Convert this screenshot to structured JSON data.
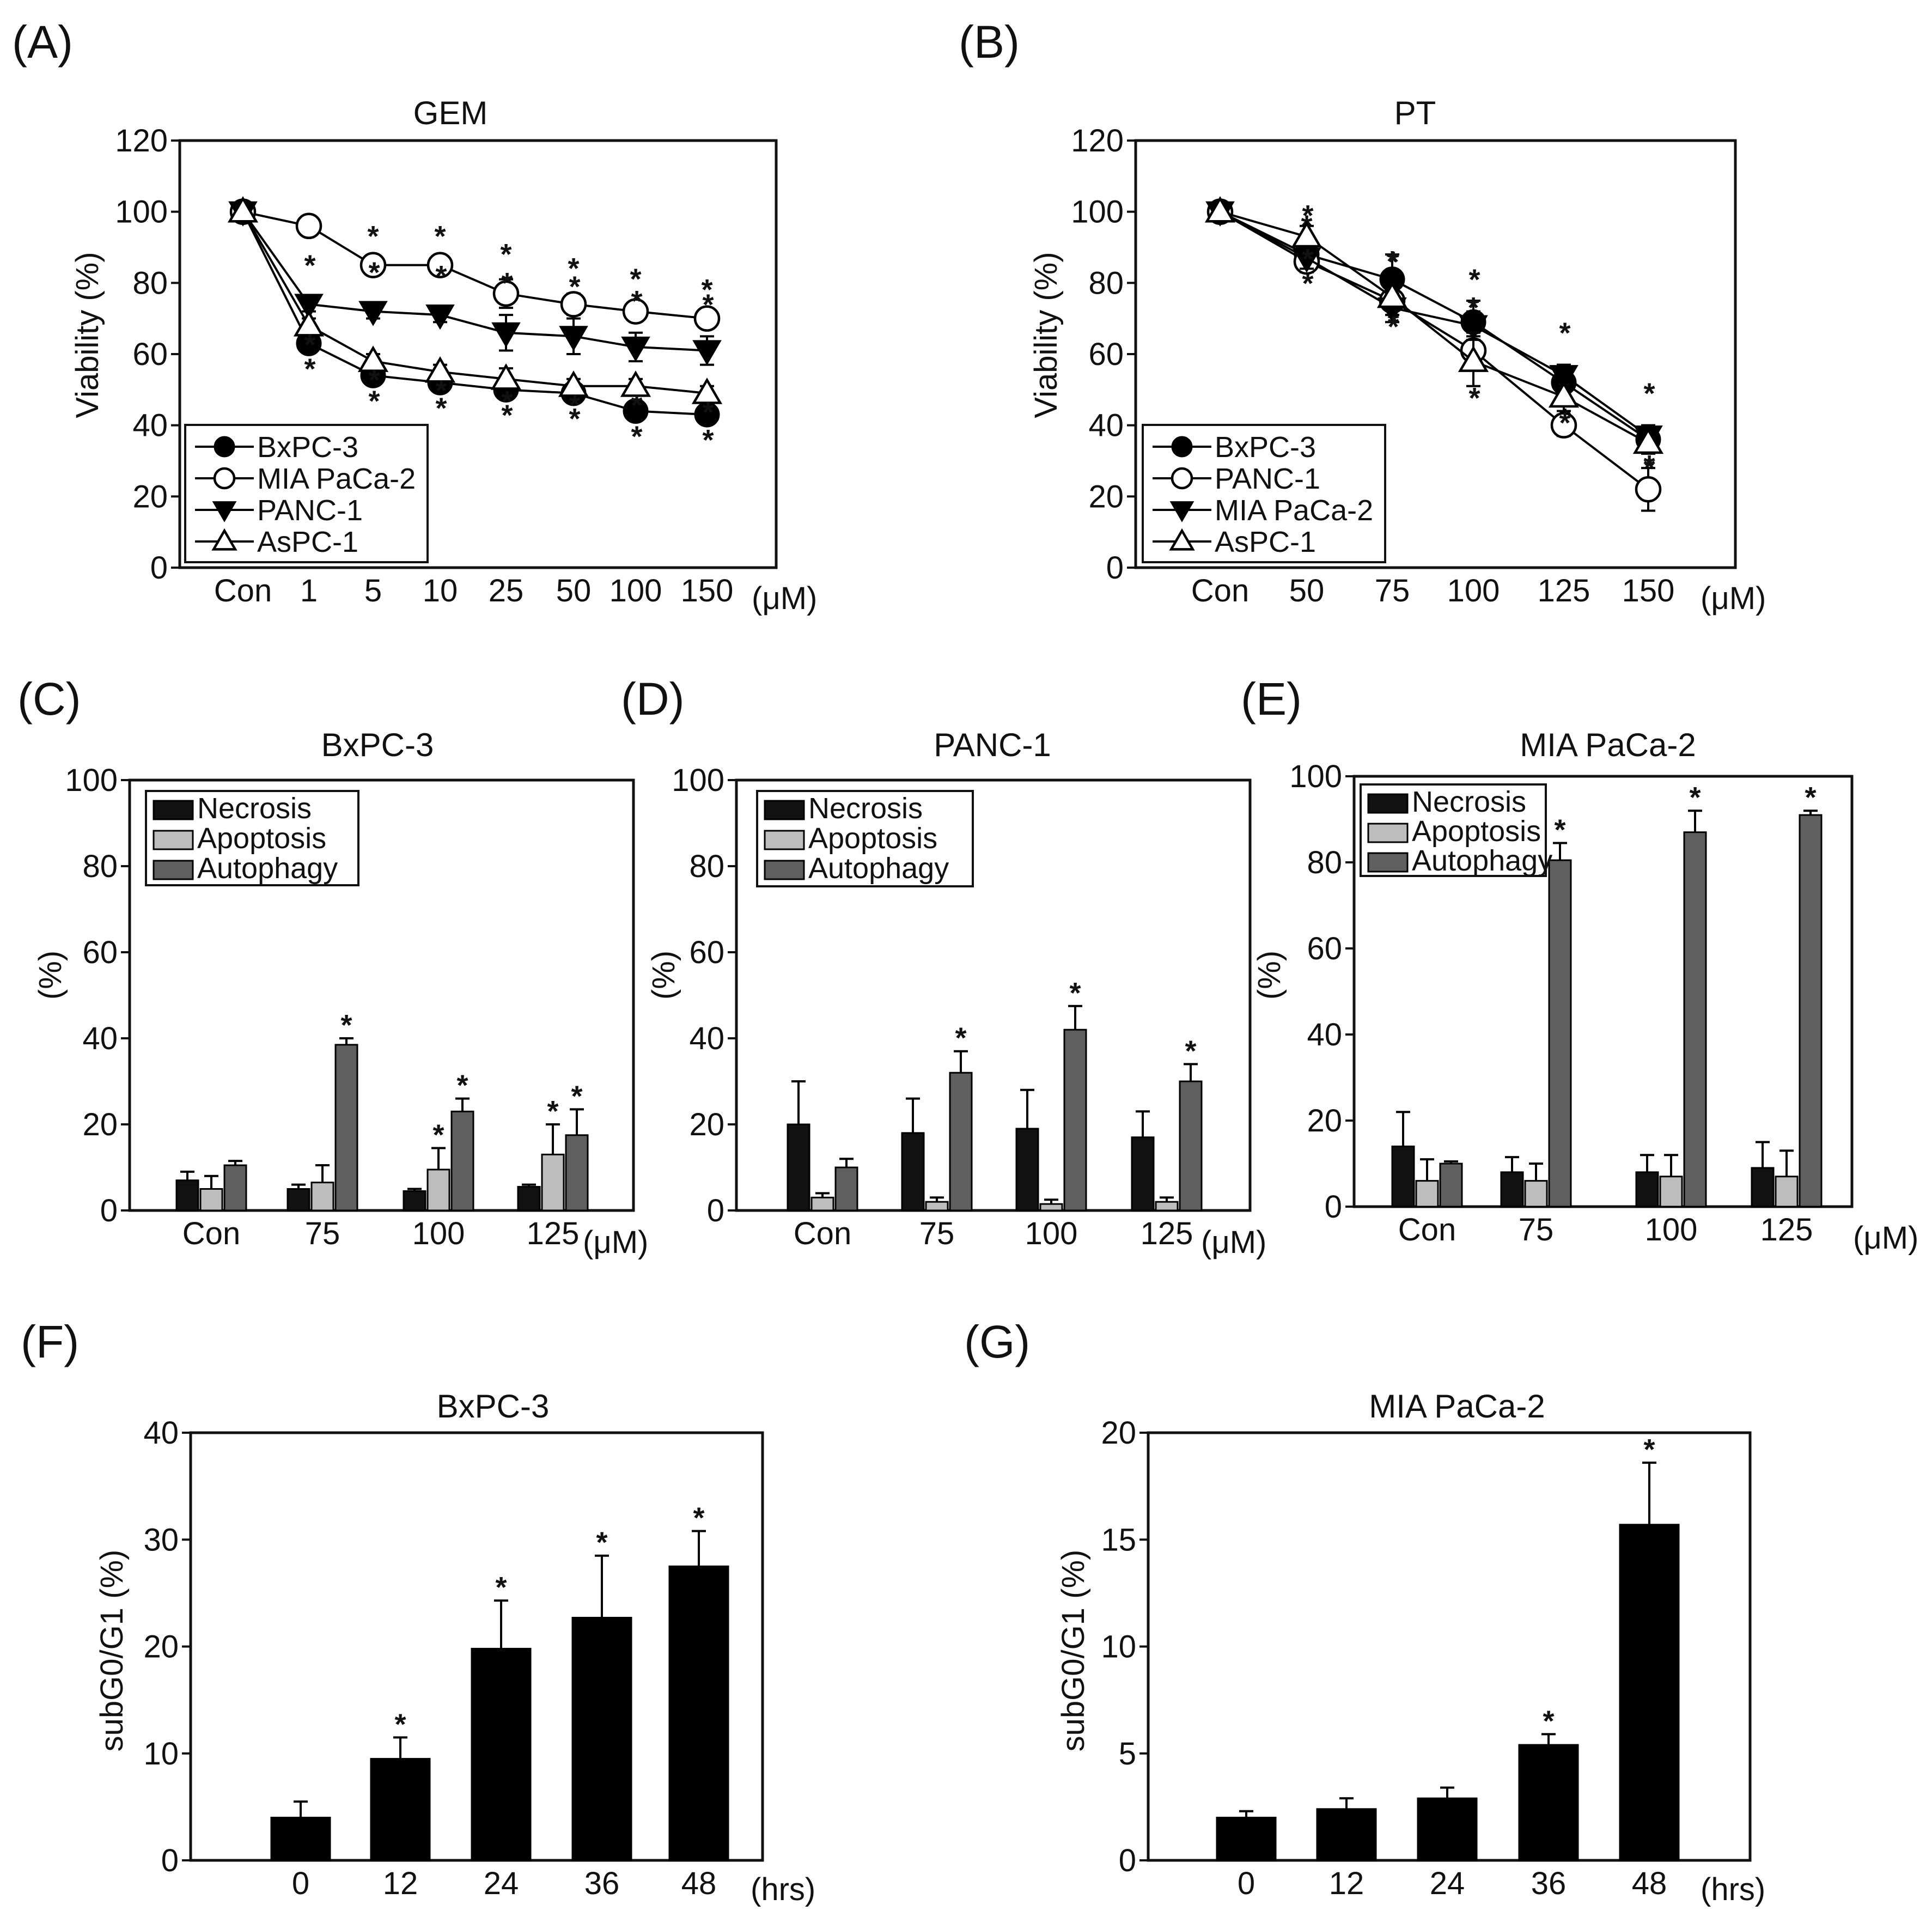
{
  "figure": {
    "description_labels": []
  },
  "chart_data": [
    {
      "id": "A",
      "panel_label": "(A)",
      "type": "line",
      "title": "GEM",
      "xlabel": "",
      "ylabel": "Viability (%)",
      "x_unit": "(μM)",
      "categories": [
        "Con",
        "1",
        "5",
        "10",
        "25",
        "50",
        "100",
        "150"
      ],
      "ylim": [
        0,
        120
      ],
      "yticks": [
        0,
        20,
        40,
        60,
        80,
        100,
        120
      ],
      "legend_position": "bottom-left",
      "series": [
        {
          "name": "BxPC-3",
          "marker": "circle-filled",
          "values": [
            100,
            63,
            54,
            52,
            50,
            49,
            44,
            43
          ],
          "errors": [
            0,
            2,
            2,
            2,
            2,
            2,
            2,
            2
          ],
          "sig": [
            false,
            true,
            true,
            true,
            true,
            true,
            true,
            true
          ]
        },
        {
          "name": "MIA PaCa-2",
          "marker": "circle-open",
          "values": [
            100,
            96,
            85,
            85,
            77,
            74,
            72,
            70
          ],
          "errors": [
            0,
            1,
            1,
            1,
            4,
            3,
            2,
            1
          ],
          "sig": [
            false,
            false,
            true,
            true,
            true,
            true,
            true,
            true
          ]
        },
        {
          "name": "PANC-1",
          "marker": "triangle-down-filled",
          "values": [
            100,
            74,
            72,
            71,
            66,
            65,
            62,
            61
          ],
          "errors": [
            0,
            2,
            2,
            2,
            5,
            5,
            4,
            4
          ],
          "sig": [
            false,
            true,
            true,
            true,
            true,
            true,
            true,
            true
          ]
        },
        {
          "name": "AsPC-1",
          "marker": "triangle-up-open",
          "values": [
            100,
            68,
            58,
            55,
            53,
            51,
            51,
            49
          ],
          "errors": [
            0,
            2,
            2,
            2,
            3,
            2,
            2,
            2
          ],
          "sig": [
            false,
            true,
            true,
            true,
            true,
            true,
            true,
            true
          ]
        }
      ]
    },
    {
      "id": "B",
      "panel_label": "(B)",
      "type": "line",
      "title": "PT",
      "xlabel": "",
      "ylabel": "Viability (%)",
      "x_unit": "(μM)",
      "categories": [
        "Con",
        "50",
        "75",
        "100",
        "125",
        "150"
      ],
      "ylim": [
        0,
        120
      ],
      "yticks": [
        0,
        20,
        40,
        60,
        80,
        100,
        120
      ],
      "legend_position": "bottom-left",
      "series": [
        {
          "name": "BxPC-3",
          "marker": "circle-filled",
          "values": [
            100,
            88,
            81,
            69,
            52,
            36
          ],
          "errors": [
            0,
            3,
            7,
            6,
            5,
            3
          ],
          "sig": [
            false,
            true,
            true,
            true,
            true,
            true
          ]
        },
        {
          "name": "PANC-1",
          "marker": "circle-open",
          "values": [
            100,
            86,
            75,
            61,
            40,
            22
          ],
          "errors": [
            0,
            3,
            4,
            5,
            3,
            6
          ],
          "sig": [
            false,
            true,
            true,
            true,
            true,
            true
          ]
        },
        {
          "name": "MIA PaCa-2",
          "marker": "triangle-down-filled",
          "values": [
            100,
            87,
            73,
            68,
            54,
            37
          ],
          "errors": [
            0,
            3,
            4,
            4,
            3,
            3
          ],
          "sig": [
            false,
            true,
            true,
            true,
            true,
            true
          ]
        },
        {
          "name": "AsPC-1",
          "marker": "triangle-up-open",
          "values": [
            100,
            93,
            76,
            58,
            48,
            35
          ],
          "errors": [
            0,
            3,
            5,
            7,
            4,
            3
          ],
          "sig": [
            false,
            true,
            true,
            true,
            true,
            true
          ]
        }
      ]
    },
    {
      "id": "C",
      "panel_label": "(C)",
      "type": "bar",
      "title": "BxPC-3",
      "ylabel": "(%)",
      "x_unit": "(μM)",
      "categories": [
        "Con",
        "75",
        "100",
        "125"
      ],
      "ylim": [
        0,
        100
      ],
      "yticks": [
        0,
        20,
        40,
        60,
        80,
        100
      ],
      "legend_position": "top-left",
      "series": [
        {
          "name": "Necrosis",
          "color": "#111111",
          "values": [
            7,
            5,
            4.5,
            5.5
          ],
          "errors": [
            2,
            1,
            0.5,
            0.5
          ],
          "sig": [
            false,
            false,
            false,
            false
          ]
        },
        {
          "name": "Apoptosis",
          "color": "#bdbdbd",
          "values": [
            5,
            6.5,
            9.5,
            13
          ],
          "errors": [
            3,
            4,
            5,
            7
          ],
          "sig": [
            false,
            false,
            true,
            true
          ]
        },
        {
          "name": "Autophagy",
          "color": "#5f5f5f",
          "values": [
            10.5,
            38.5,
            23,
            17.5
          ],
          "errors": [
            1,
            1.5,
            3,
            6
          ],
          "sig": [
            false,
            true,
            true,
            true
          ]
        }
      ]
    },
    {
      "id": "D",
      "panel_label": "(D)",
      "type": "bar",
      "title": "PANC-1",
      "ylabel": "(%)",
      "x_unit": "(μM)",
      "categories": [
        "Con",
        "75",
        "100",
        "125"
      ],
      "ylim": [
        0,
        100
      ],
      "yticks": [
        0,
        20,
        40,
        60,
        80,
        100
      ],
      "legend_position": "top-left",
      "series": [
        {
          "name": "Necrosis",
          "color": "#111111",
          "values": [
            20,
            18,
            19,
            17
          ],
          "errors": [
            10,
            8,
            9,
            6
          ],
          "sig": [
            false,
            false,
            false,
            false
          ]
        },
        {
          "name": "Apoptosis",
          "color": "#bdbdbd",
          "values": [
            3,
            2,
            1.5,
            2
          ],
          "errors": [
            1,
            1,
            1,
            1
          ],
          "sig": [
            false,
            false,
            false,
            false
          ]
        },
        {
          "name": "Autophagy",
          "color": "#5f5f5f",
          "values": [
            10,
            32,
            42,
            30
          ],
          "errors": [
            2,
            5,
            5.5,
            4
          ],
          "sig": [
            false,
            true,
            true,
            true
          ]
        }
      ]
    },
    {
      "id": "E",
      "panel_label": "(E)",
      "type": "bar",
      "title": "MIA PaCa-2",
      "ylabel": "(%)",
      "x_unit": "(μM)",
      "categories": [
        "Con",
        "75",
        "100",
        "125"
      ],
      "ylim": [
        0,
        100
      ],
      "yticks": [
        0,
        20,
        40,
        60,
        80,
        100
      ],
      "legend_position": "top-left",
      "series": [
        {
          "name": "Necrosis",
          "color": "#111111",
          "values": [
            14,
            8,
            8,
            9
          ],
          "errors": [
            8,
            3.5,
            4,
            6
          ],
          "sig": [
            false,
            false,
            false,
            false
          ]
        },
        {
          "name": "Apoptosis",
          "color": "#bdbdbd",
          "values": [
            6,
            6,
            7,
            7
          ],
          "errors": [
            5,
            4,
            5,
            6
          ],
          "sig": [
            false,
            false,
            false,
            false
          ]
        },
        {
          "name": "Autophagy",
          "color": "#5f5f5f",
          "values": [
            10,
            80.5,
            87,
            91
          ],
          "errors": [
            0.5,
            4,
            5,
            1
          ],
          "sig": [
            false,
            true,
            true,
            true
          ]
        }
      ]
    },
    {
      "id": "F",
      "panel_label": "(F)",
      "type": "bar",
      "title": "BxPC-3",
      "ylabel": "subG0/G1 (%)",
      "x_unit": "(hrs)",
      "categories": [
        "0",
        "12",
        "24",
        "36",
        "48"
      ],
      "ylim": [
        0,
        40
      ],
      "yticks": [
        0,
        10,
        20,
        30,
        40
      ],
      "series": [
        {
          "name": "subG0/G1",
          "color": "#000000",
          "values": [
            4,
            9.5,
            19.8,
            22.7,
            27.5
          ],
          "errors": [
            1.5,
            2,
            4.5,
            5.8,
            3.3
          ],
          "sig": [
            false,
            true,
            true,
            true,
            true
          ]
        }
      ]
    },
    {
      "id": "G",
      "panel_label": "(G)",
      "type": "bar",
      "title": "MIA PaCa-2",
      "ylabel": "subG0/G1 (%)",
      "x_unit": "(hrs)",
      "categories": [
        "0",
        "12",
        "24",
        "36",
        "48"
      ],
      "ylim": [
        0,
        20
      ],
      "yticks": [
        0,
        5,
        10,
        15,
        20
      ],
      "series": [
        {
          "name": "subG0/G1",
          "color": "#000000",
          "values": [
            2,
            2.4,
            2.9,
            5.4,
            15.7
          ],
          "errors": [
            0.3,
            0.5,
            0.5,
            0.5,
            2.9
          ],
          "sig": [
            false,
            false,
            false,
            true,
            true
          ]
        }
      ]
    }
  ]
}
